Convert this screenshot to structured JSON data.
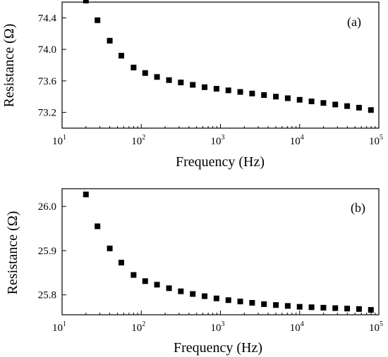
{
  "chart_data": [
    {
      "type": "scatter",
      "panel_label": "(a)",
      "xlabel": "Frequency (Hz)",
      "ylabel": "Resistance (Ω)",
      "xscale": "log",
      "xlim": [
        10,
        100000
      ],
      "ylim": [
        73.0,
        74.6
      ],
      "xticks": [
        {
          "base": "10",
          "exp": "1"
        },
        {
          "base": "10",
          "exp": "2"
        },
        {
          "base": "10",
          "exp": "3"
        },
        {
          "base": "10",
          "exp": "4"
        },
        {
          "base": "10",
          "exp": "5"
        }
      ],
      "yticks": [
        "73.2",
        "73.6",
        "74.0",
        "74.4"
      ],
      "ytick_values": [
        73.2,
        73.6,
        74.0,
        74.4
      ],
      "marker_color": "#000000",
      "x": [
        20,
        28,
        40,
        56,
        80,
        112,
        158,
        224,
        316,
        447,
        631,
        891,
        1259,
        1778,
        2512,
        3548,
        5012,
        7079,
        10000,
        14125,
        19953,
        28184,
        39811,
        56234,
        79433
      ],
      "y": [
        74.62,
        74.37,
        74.11,
        73.92,
        73.77,
        73.7,
        73.65,
        73.61,
        73.58,
        73.55,
        73.52,
        73.5,
        73.48,
        73.46,
        73.44,
        73.42,
        73.4,
        73.38,
        73.36,
        73.34,
        73.32,
        73.3,
        73.28,
        73.26,
        73.23
      ]
    },
    {
      "type": "scatter",
      "panel_label": "(b)",
      "xlabel": "Frequency (Hz)",
      "ylabel": "Resistance (Ω)",
      "xscale": "log",
      "xlim": [
        10,
        100000
      ],
      "ylim": [
        25.755,
        26.04
      ],
      "xticks": [
        {
          "base": "10",
          "exp": "1"
        },
        {
          "base": "10",
          "exp": "2"
        },
        {
          "base": "10",
          "exp": "3"
        },
        {
          "base": "10",
          "exp": "4"
        },
        {
          "base": "10",
          "exp": "5"
        }
      ],
      "yticks": [
        "25.8",
        "25.9",
        "26.0"
      ],
      "ytick_values": [
        25.8,
        25.9,
        26.0
      ],
      "marker_color": "#000000",
      "x": [
        20,
        28,
        40,
        56,
        80,
        112,
        158,
        224,
        316,
        447,
        631,
        891,
        1259,
        1778,
        2512,
        3548,
        5012,
        7079,
        10000,
        14125,
        19953,
        28184,
        39811,
        56234,
        79433
      ],
      "y": [
        26.027,
        25.955,
        25.905,
        25.873,
        25.845,
        25.831,
        25.823,
        25.815,
        25.808,
        25.802,
        25.797,
        25.792,
        25.788,
        25.785,
        25.782,
        25.779,
        25.777,
        25.775,
        25.773,
        25.772,
        25.771,
        25.77,
        25.769,
        25.768,
        25.766
      ]
    }
  ]
}
